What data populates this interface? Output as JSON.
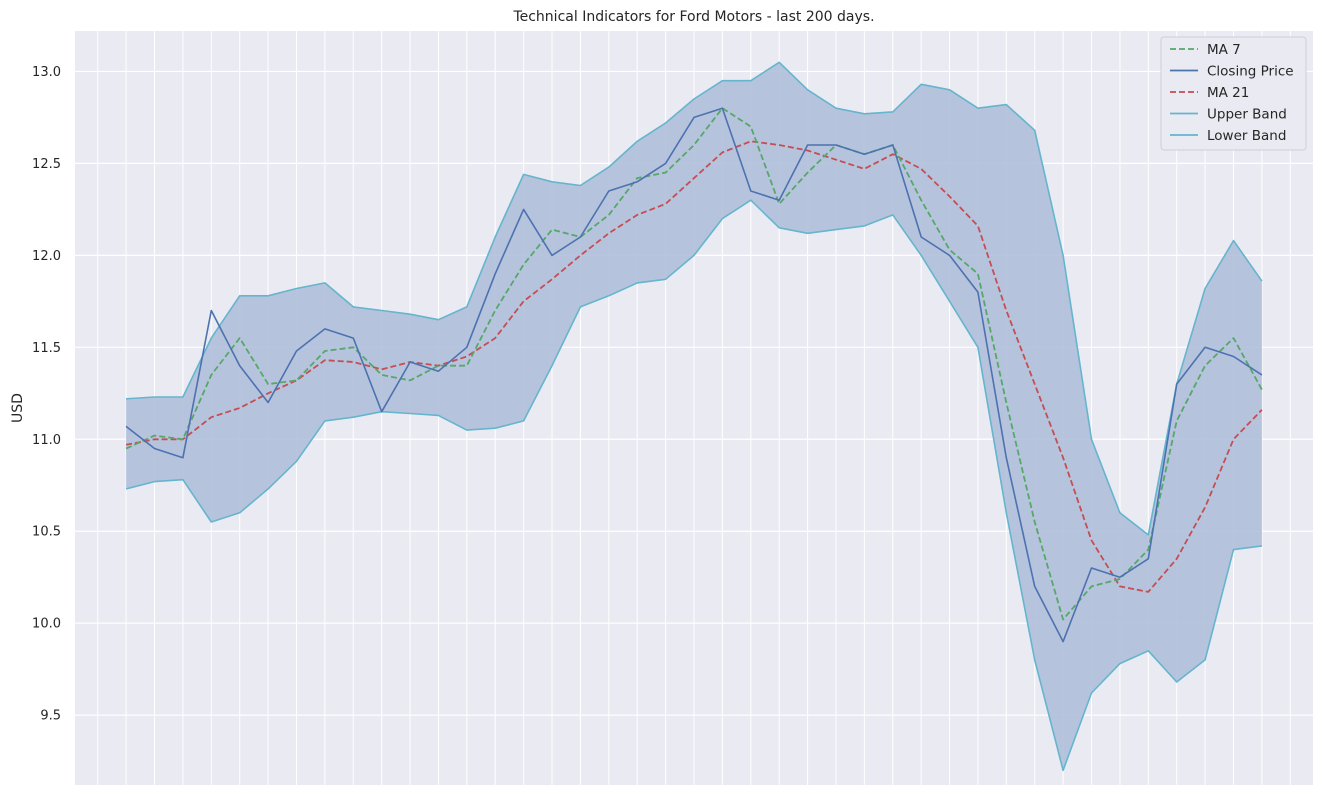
{
  "chart_data": {
    "type": "line",
    "title": "Technical Indicators for Ford Motors - last 200 days.",
    "xlabel": "",
    "ylabel": "USD",
    "ylim": [
      9.12,
      13.22
    ],
    "xlim": [
      -9,
      209
    ],
    "yticks": [
      9.5,
      10.0,
      10.5,
      11.0,
      11.5,
      12.0,
      12.5,
      13.0
    ],
    "ytick_labels": [
      "9.5",
      "10.0",
      "10.5",
      "11.0",
      "11.5",
      "12.0",
      "12.5",
      "13.0"
    ],
    "grid": true,
    "legend_position": "top-right",
    "band_fill_color": "#b0bfda",
    "x": [
      0,
      5,
      10,
      15,
      20,
      25,
      30,
      35,
      40,
      45,
      50,
      55,
      60,
      65,
      70,
      75,
      80,
      85,
      90,
      95,
      100,
      105,
      110,
      115,
      120,
      125,
      130,
      135,
      140,
      145,
      150,
      155,
      160,
      165,
      170,
      175,
      180,
      185,
      190,
      195,
      200
    ],
    "series": [
      {
        "name": "MA 7",
        "color": "#55a868",
        "style": "dashed",
        "values": [
          10.95,
          11.02,
          11.0,
          11.35,
          11.55,
          11.3,
          11.32,
          11.48,
          11.5,
          11.35,
          11.32,
          11.4,
          11.4,
          11.7,
          11.95,
          12.14,
          12.1,
          12.22,
          12.42,
          12.45,
          12.6,
          12.8,
          12.7,
          12.28,
          12.45,
          12.6,
          12.55,
          12.6,
          12.3,
          12.03,
          11.9,
          11.2,
          10.55,
          10.02,
          10.2,
          10.24,
          10.4,
          11.1,
          11.4,
          11.55,
          11.27
        ]
      },
      {
        "name": "Closing Price",
        "color": "#4c72b0",
        "style": "solid",
        "values": [
          11.07,
          10.95,
          10.9,
          11.7,
          11.4,
          11.2,
          11.48,
          11.6,
          11.55,
          11.15,
          11.42,
          11.37,
          11.5,
          11.9,
          12.25,
          12.0,
          12.1,
          12.35,
          12.4,
          12.5,
          12.75,
          12.8,
          12.35,
          12.3,
          12.6,
          12.6,
          12.55,
          12.6,
          12.1,
          12.0,
          11.8,
          10.9,
          10.2,
          9.9,
          10.3,
          10.25,
          10.35,
          11.3,
          11.5,
          11.45,
          11.35
        ]
      },
      {
        "name": "MA 21",
        "color": "#c44e52",
        "style": "dashed",
        "values": [
          10.97,
          11.0,
          11.0,
          11.12,
          11.17,
          11.25,
          11.32,
          11.43,
          11.42,
          11.38,
          11.42,
          11.4,
          11.45,
          11.55,
          11.75,
          11.87,
          12.0,
          12.12,
          12.22,
          12.28,
          12.42,
          12.56,
          12.62,
          12.6,
          12.57,
          12.52,
          12.47,
          12.55,
          12.47,
          12.32,
          12.16,
          11.7,
          11.3,
          10.9,
          10.45,
          10.2,
          10.17,
          10.35,
          10.63,
          11.0,
          11.16
        ]
      },
      {
        "name": "Upper Band",
        "color": "#64b5cd",
        "style": "solid",
        "values": [
          11.22,
          11.23,
          11.23,
          11.55,
          11.78,
          11.78,
          11.82,
          11.85,
          11.72,
          11.7,
          11.68,
          11.65,
          11.72,
          12.1,
          12.44,
          12.4,
          12.38,
          12.48,
          12.62,
          12.72,
          12.85,
          12.95,
          12.95,
          13.05,
          12.9,
          12.8,
          12.77,
          12.78,
          12.93,
          12.9,
          12.8,
          12.82,
          12.68,
          12.0,
          11.0,
          10.6,
          10.48,
          11.3,
          11.82,
          12.08,
          11.86
        ]
      },
      {
        "name": "Lower Band",
        "color": "#64b5cd",
        "style": "solid",
        "values": [
          10.73,
          10.77,
          10.78,
          10.55,
          10.6,
          10.73,
          10.88,
          11.1,
          11.12,
          11.15,
          11.14,
          11.13,
          11.05,
          11.06,
          11.1,
          11.4,
          11.72,
          11.78,
          11.85,
          11.87,
          12.0,
          12.2,
          12.3,
          12.15,
          12.12,
          12.14,
          12.16,
          12.22,
          12.0,
          11.75,
          11.5,
          10.6,
          9.8,
          9.2,
          9.62,
          9.78,
          9.85,
          9.68,
          9.8,
          10.4,
          10.42
        ]
      }
    ]
  }
}
